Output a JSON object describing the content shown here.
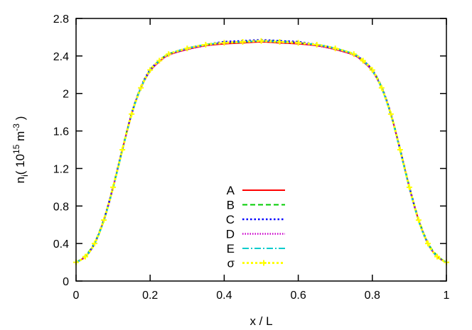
{
  "chart_data": {
    "type": "line",
    "title": "",
    "xlabel": "x / L",
    "ylabel": {
      "base": "n",
      "sub": "i",
      "unit_open": "( 10",
      "exp": "15",
      "unit_mid": " m",
      "unit_exp": "-3",
      "unit_close": " )"
    },
    "xlim": [
      0,
      1
    ],
    "ylim": [
      0,
      2.8
    ],
    "x_ticks": [
      "0",
      "0.2",
      "0.4",
      "0.6",
      "0.8",
      "1"
    ],
    "y_ticks": [
      "0",
      "0.4",
      "0.8",
      "1.2",
      "1.6",
      "2",
      "2.4",
      "2.8"
    ],
    "grid": false,
    "legend_position": "bottom-center",
    "x": [
      0.0,
      0.025,
      0.05,
      0.075,
      0.1,
      0.125,
      0.15,
      0.175,
      0.2,
      0.225,
      0.25,
      0.3,
      0.35,
      0.4,
      0.45,
      0.5,
      0.55,
      0.6,
      0.65,
      0.7,
      0.75,
      0.775,
      0.8,
      0.825,
      0.85,
      0.875,
      0.9,
      0.925,
      0.95,
      0.975,
      1.0
    ],
    "series": [
      {
        "name": "A",
        "color": "#ff0000",
        "dash": "solid",
        "marker": "none",
        "values": [
          0.2,
          0.26,
          0.4,
          0.65,
          1.0,
          1.4,
          1.78,
          2.06,
          2.24,
          2.34,
          2.41,
          2.47,
          2.51,
          2.53,
          2.54,
          2.55,
          2.54,
          2.53,
          2.51,
          2.47,
          2.41,
          2.34,
          2.24,
          2.06,
          1.78,
          1.4,
          1.0,
          0.65,
          0.4,
          0.26,
          0.2
        ]
      },
      {
        "name": "B",
        "color": "#00cc00",
        "dash": "dashed",
        "marker": "none",
        "values": [
          0.2,
          0.27,
          0.41,
          0.66,
          1.01,
          1.41,
          1.79,
          2.07,
          2.25,
          2.35,
          2.42,
          2.48,
          2.52,
          2.54,
          2.55,
          2.56,
          2.56,
          2.54,
          2.52,
          2.48,
          2.42,
          2.35,
          2.25,
          2.07,
          1.79,
          1.41,
          1.01,
          0.66,
          0.41,
          0.27,
          0.2
        ]
      },
      {
        "name": "C",
        "color": "#0000ff",
        "dash": "dotted",
        "marker": "none",
        "values": [
          0.2,
          0.26,
          0.4,
          0.65,
          1.0,
          1.4,
          1.78,
          2.07,
          2.25,
          2.35,
          2.42,
          2.48,
          2.52,
          2.55,
          2.56,
          2.57,
          2.56,
          2.55,
          2.52,
          2.48,
          2.42,
          2.35,
          2.25,
          2.07,
          1.78,
          1.4,
          1.0,
          0.65,
          0.4,
          0.26,
          0.2
        ]
      },
      {
        "name": "D",
        "color": "#cc00cc",
        "dash": "dotted-fine",
        "marker": "none",
        "values": [
          0.2,
          0.26,
          0.4,
          0.65,
          1.0,
          1.4,
          1.78,
          2.06,
          2.24,
          2.34,
          2.41,
          2.47,
          2.51,
          2.54,
          2.55,
          2.56,
          2.55,
          2.54,
          2.51,
          2.47,
          2.41,
          2.34,
          2.24,
          2.06,
          1.78,
          1.4,
          1.0,
          0.65,
          0.4,
          0.26,
          0.2
        ]
      },
      {
        "name": "E",
        "color": "#00cccc",
        "dash": "dash-dot",
        "marker": "none",
        "values": [
          0.2,
          0.26,
          0.4,
          0.64,
          0.99,
          1.39,
          1.77,
          2.06,
          2.24,
          2.35,
          2.42,
          2.48,
          2.52,
          2.54,
          2.55,
          2.56,
          2.55,
          2.54,
          2.52,
          2.48,
          2.42,
          2.35,
          2.24,
          2.06,
          1.77,
          1.39,
          0.99,
          0.64,
          0.4,
          0.26,
          0.2
        ]
      },
      {
        "name": "σ",
        "color": "#ffff00",
        "dash": "dotted-thick",
        "marker": "plus",
        "values": [
          0.2,
          0.26,
          0.4,
          0.65,
          1.0,
          1.4,
          1.78,
          2.06,
          2.25,
          2.35,
          2.42,
          2.48,
          2.52,
          2.54,
          2.55,
          2.56,
          2.55,
          2.54,
          2.52,
          2.48,
          2.42,
          2.35,
          2.25,
          2.06,
          1.78,
          1.4,
          1.0,
          0.65,
          0.4,
          0.26,
          0.2
        ]
      }
    ]
  }
}
